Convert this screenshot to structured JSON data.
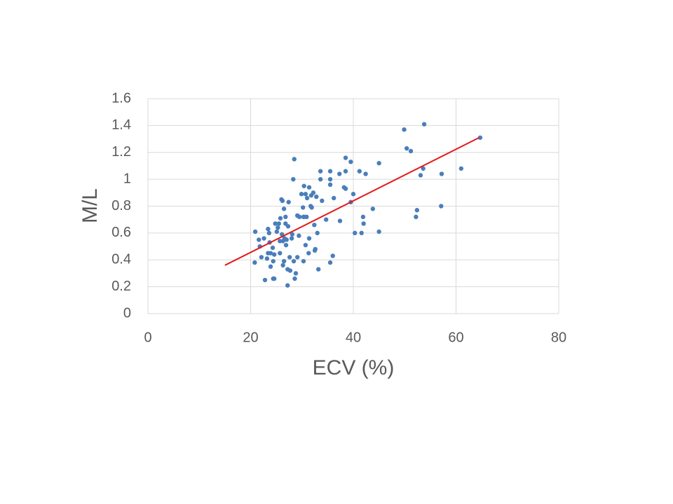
{
  "chart_data": {
    "type": "scatter",
    "xlabel": "ECV (%)",
    "ylabel": "M/L",
    "xlim": [
      0,
      80
    ],
    "xticks": [
      0,
      20,
      40,
      60,
      80
    ],
    "ylim": [
      0,
      1.6
    ],
    "yticks": [
      0,
      0.2,
      0.4,
      0.6,
      0.8,
      1,
      1.2,
      1.4,
      1.6
    ],
    "grid": true,
    "x": [
      20.9,
      20.8,
      21.6,
      21.8,
      22.1,
      22.6,
      22.8,
      23.2,
      23.4,
      23.6,
      23.7,
      23.4,
      23.9,
      23.9,
      24.3,
      24.4,
      24.4,
      24.6,
      24.6,
      24.8,
      25.1,
      25.3,
      25.5,
      25.7,
      25.7,
      25.8,
      26.0,
      26.1,
      26.2,
      26.3,
      26.3,
      26.5,
      26.5,
      26.6,
      26.8,
      26.8,
      26.9,
      27.0,
      27.2,
      27.2,
      27.3,
      27.4,
      27.6,
      27.7,
      28.0,
      28.1,
      28.3,
      28.4,
      28.5,
      28.6,
      28.8,
      29.1,
      29.1,
      29.4,
      29.5,
      29.9,
      30.2,
      30.3,
      30.3,
      30.4,
      30.4,
      30.7,
      30.7,
      30.9,
      31.0,
      31.3,
      31.4,
      31.4,
      31.7,
      31.8,
      31.9,
      32.2,
      32.4,
      32.5,
      32.6,
      32.8,
      33.0,
      33.2,
      33.6,
      33.6,
      33.9,
      34.7,
      35.5,
      35.5,
      35.5,
      35.5,
      36.0,
      36.2,
      37.3,
      37.4,
      38.2,
      38.5,
      38.5,
      38.5,
      39.5,
      39.5,
      40.0,
      40.3,
      41.2,
      41.6,
      41.9,
      42.0,
      42.4,
      43.8,
      45.0,
      45.0,
      49.9,
      50.4,
      51.2,
      52.2,
      52.4,
      53.1,
      53.6,
      53.8,
      57.1,
      57.2,
      61.0,
      64.7
    ],
    "series": [
      {
        "color": "#4a7ebb",
        "values": [
          0.61,
          0.38,
          0.55,
          0.5,
          0.42,
          0.56,
          0.25,
          0.41,
          0.63,
          0.6,
          0.53,
          0.45,
          0.45,
          0.35,
          0.49,
          0.39,
          0.26,
          0.26,
          0.44,
          0.67,
          0.61,
          0.64,
          0.67,
          0.54,
          0.45,
          0.71,
          0.85,
          0.59,
          0.84,
          0.54,
          0.36,
          0.78,
          0.39,
          0.56,
          0.67,
          0.72,
          0.51,
          0.55,
          0.21,
          0.33,
          0.65,
          0.83,
          0.42,
          0.32,
          0.56,
          0.59,
          1.0,
          0.39,
          1.15,
          0.26,
          0.3,
          0.42,
          0.73,
          0.58,
          0.72,
          0.89,
          0.79,
          0.72,
          0.39,
          0.95,
          0.72,
          0.51,
          0.89,
          0.72,
          0.86,
          0.45,
          0.56,
          0.94,
          0.8,
          0.88,
          0.79,
          0.9,
          0.66,
          0.47,
          0.48,
          0.87,
          0.6,
          0.33,
          1.06,
          1.0,
          0.84,
          0.7,
          1.06,
          1.0,
          0.96,
          0.38,
          0.43,
          0.86,
          1.04,
          0.69,
          0.94,
          1.16,
          0.93,
          1.06,
          1.13,
          0.83,
          0.89,
          0.6,
          1.06,
          0.6,
          0.72,
          0.67,
          1.04,
          0.78,
          1.12,
          0.61,
          1.37,
          1.23,
          1.21,
          0.72,
          0.77,
          1.03,
          1.08,
          1.41,
          0.8,
          1.04,
          1.08,
          1.31
        ]
      }
    ],
    "trendline": {
      "x": [
        15,
        64.5
      ],
      "values": [
        0.36,
        1.31
      ],
      "color": "#e31a1c"
    }
  }
}
